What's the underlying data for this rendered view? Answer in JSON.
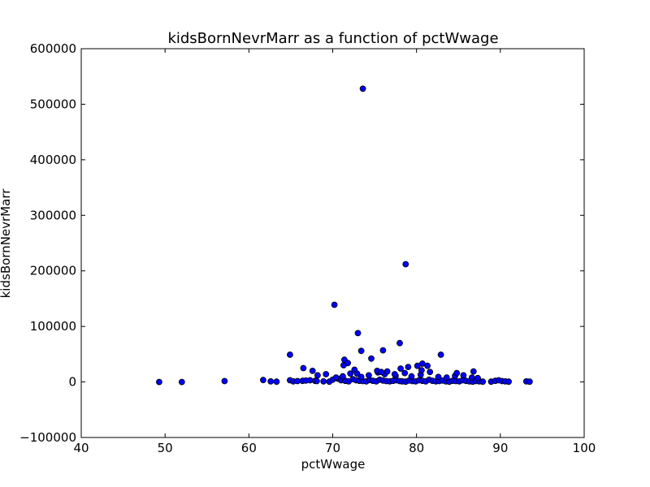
{
  "chart_data": {
    "type": "scatter",
    "title": "kidsBornNevrMarr as a function of pctWwage",
    "xlabel": "pctWwage",
    "ylabel": "kidsBornNevrMarr",
    "xlim": [
      40,
      100
    ],
    "ylim": [
      -100000,
      600000
    ],
    "xticks": [
      40,
      50,
      60,
      70,
      80,
      90,
      100
    ],
    "yticks": [
      -100000,
      0,
      100000,
      200000,
      300000,
      400000,
      500000,
      600000
    ],
    "xtick_labels": [
      "40",
      "50",
      "60",
      "70",
      "80",
      "90",
      "100"
    ],
    "ytick_labels": [
      "−100000",
      "0",
      "100000",
      "200000",
      "300000",
      "400000",
      "500000",
      "600000"
    ],
    "grid": false,
    "colors": {
      "marker_fill": "#0000ff",
      "marker_edge": "#000000"
    },
    "points": [
      [
        49.3,
        0
      ],
      [
        52.0,
        0
      ],
      [
        57.1,
        1500
      ],
      [
        61.7,
        3500
      ],
      [
        62.6,
        1000
      ],
      [
        63.3,
        500
      ],
      [
        64.9,
        3000
      ],
      [
        65.3,
        1000
      ],
      [
        65.8,
        1500
      ],
      [
        66.4,
        2000
      ],
      [
        66.8,
        2500
      ],
      [
        67.3,
        3000
      ],
      [
        67.9,
        2000
      ],
      [
        68.1,
        1500
      ],
      [
        68.9,
        1000
      ],
      [
        69.6,
        500
      ],
      [
        70.0,
        4000
      ],
      [
        70.6,
        6000
      ],
      [
        71.0,
        3000
      ],
      [
        71.5,
        2000
      ],
      [
        71.9,
        1000
      ],
      [
        72.4,
        5000
      ],
      [
        72.8,
        3000
      ],
      [
        73.2,
        2000
      ],
      [
        73.6,
        1500
      ],
      [
        74.0,
        1000
      ],
      [
        74.4,
        3500
      ],
      [
        74.8,
        2000
      ],
      [
        75.2,
        1000
      ],
      [
        75.6,
        4000
      ],
      [
        76.0,
        2500
      ],
      [
        76.4,
        1500
      ],
      [
        76.8,
        1000
      ],
      [
        77.2,
        2000
      ],
      [
        77.6,
        3000
      ],
      [
        78.0,
        1500
      ],
      [
        78.3,
        1000
      ],
      [
        78.7,
        500
      ],
      [
        79.1,
        2500
      ],
      [
        79.5,
        1500
      ],
      [
        79.9,
        1000
      ],
      [
        80.3,
        3000
      ],
      [
        80.7,
        2000
      ],
      [
        81.1,
        1000
      ],
      [
        81.5,
        4000
      ],
      [
        81.9,
        2000
      ],
      [
        82.3,
        1000
      ],
      [
        82.7,
        1500
      ],
      [
        83.1,
        2500
      ],
      [
        83.5,
        1000
      ],
      [
        83.9,
        500
      ],
      [
        84.3,
        2000
      ],
      [
        84.7,
        1500
      ],
      [
        85.1,
        1000
      ],
      [
        85.5,
        3000
      ],
      [
        85.9,
        2000
      ],
      [
        86.3,
        1000
      ],
      [
        86.7,
        500
      ],
      [
        87.1,
        1500
      ],
      [
        87.5,
        1000
      ],
      [
        87.9,
        500
      ],
      [
        88.9,
        500
      ],
      [
        89.4,
        2000
      ],
      [
        89.8,
        3000
      ],
      [
        90.2,
        1500
      ],
      [
        90.6,
        1000
      ],
      [
        91.0,
        500
      ],
      [
        93.1,
        1000
      ],
      [
        93.5,
        500
      ],
      [
        71.2,
        10000
      ],
      [
        72.1,
        15000
      ],
      [
        73.4,
        9000
      ],
      [
        74.3,
        12000
      ],
      [
        75.4,
        17000
      ],
      [
        76.2,
        14000
      ],
      [
        77.5,
        11000
      ],
      [
        78.6,
        16000
      ],
      [
        79.4,
        10000
      ],
      [
        80.5,
        13000
      ],
      [
        81.6,
        18000
      ],
      [
        82.6,
        9000
      ],
      [
        83.6,
        8000
      ],
      [
        84.6,
        11000
      ],
      [
        85.6,
        12000
      ],
      [
        86.6,
        8000
      ],
      [
        87.3,
        7000
      ],
      [
        72.6,
        22000
      ],
      [
        75.3,
        20000
      ],
      [
        76.5,
        19000
      ],
      [
        78.1,
        24000
      ],
      [
        80.6,
        21000
      ],
      [
        70.4,
        8000
      ],
      [
        69.2,
        14000
      ],
      [
        68.2,
        12000
      ],
      [
        67.6,
        20000
      ],
      [
        66.5,
        25000
      ],
      [
        71.3,
        30000
      ],
      [
        71.4,
        40000
      ],
      [
        71.8,
        34000
      ],
      [
        72.9,
        15000
      ],
      [
        74.6,
        42000
      ],
      [
        75.8,
        18000
      ],
      [
        77.4,
        14000
      ],
      [
        79.0,
        27000
      ],
      [
        80.1,
        29000
      ],
      [
        80.7,
        33000
      ],
      [
        81.3,
        29000
      ],
      [
        82.9,
        49000
      ],
      [
        84.8,
        16000
      ],
      [
        86.8,
        19000
      ],
      [
        64.9,
        49000
      ],
      [
        73.0,
        88000
      ],
      [
        73.4,
        56000
      ],
      [
        76.0,
        57000
      ],
      [
        78.0,
        70000
      ],
      [
        70.2,
        139000
      ],
      [
        78.7,
        212000
      ],
      [
        73.6,
        528000
      ]
    ]
  }
}
